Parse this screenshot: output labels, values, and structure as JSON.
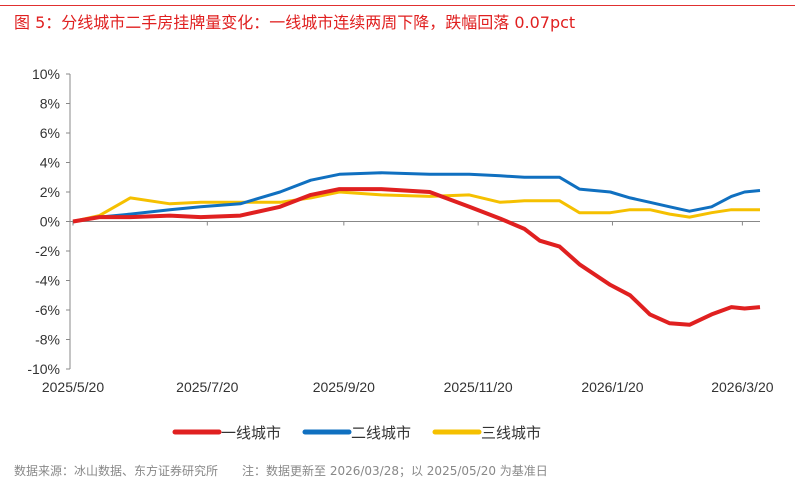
{
  "title": "图 5：分线城市二手房挂牌量变化：一线城市连续两周下降，跌幅回落 0.07pct",
  "source": "数据来源：冰山数据、东方证券研究所　　注：数据更新至 2026/03/28；以 2025/05/20 为基准日",
  "chart_data": {
    "type": "line",
    "xlabel": "",
    "ylabel": "",
    "x_unit": "days since 2025/5/20",
    "x_ticks": [
      {
        "day": 0,
        "label": "2025/5/20"
      },
      {
        "day": 61,
        "label": "2025/7/20"
      },
      {
        "day": 123,
        "label": "2025/9/20"
      },
      {
        "day": 184,
        "label": "2025/11/20"
      },
      {
        "day": 245,
        "label": "2026/1/20"
      },
      {
        "day": 304,
        "label": "2026/3/20"
      }
    ],
    "xlim": [
      0,
      312
    ],
    "y_ticks": [
      "10%",
      "8%",
      "6%",
      "4%",
      "2%",
      "0%",
      "-2%",
      "-4%",
      "-6%",
      "-8%",
      "-10%"
    ],
    "ylim": [
      -10,
      10
    ],
    "x": [
      0,
      12,
      26,
      44,
      58,
      76,
      94,
      108,
      121,
      140,
      162,
      180,
      194,
      205,
      212,
      221,
      230,
      244,
      253,
      262,
      271,
      280,
      290,
      299,
      305,
      312
    ],
    "series": [
      {
        "name": "一线城市",
        "color": "#e02020",
        "values": [
          0,
          0.3,
          0.3,
          0.4,
          0.3,
          0.4,
          1.0,
          1.8,
          2.2,
          2.2,
          2.0,
          1.0,
          0.2,
          -0.5,
          -1.3,
          -1.7,
          -2.9,
          -4.3,
          -5.0,
          -6.3,
          -6.9,
          -7.0,
          -6.3,
          -5.8,
          -5.9,
          -5.8
        ]
      },
      {
        "name": "二线城市",
        "color": "#1070c0",
        "values": [
          0,
          0.3,
          0.5,
          0.8,
          1.0,
          1.2,
          2.0,
          2.8,
          3.2,
          3.3,
          3.2,
          3.2,
          3.1,
          3.0,
          3.0,
          3.0,
          2.2,
          2.0,
          1.6,
          1.3,
          1.0,
          0.7,
          1.0,
          1.7,
          2.0,
          2.1
        ]
      },
      {
        "name": "三线城市",
        "color": "#f5c000",
        "values": [
          0,
          0.4,
          1.6,
          1.2,
          1.3,
          1.3,
          1.3,
          1.6,
          2.0,
          1.8,
          1.7,
          1.8,
          1.3,
          1.4,
          1.4,
          1.4,
          0.6,
          0.6,
          0.8,
          0.8,
          0.5,
          0.3,
          0.6,
          0.8,
          0.8,
          0.8
        ]
      }
    ],
    "legend": "bottom",
    "grid": false
  }
}
